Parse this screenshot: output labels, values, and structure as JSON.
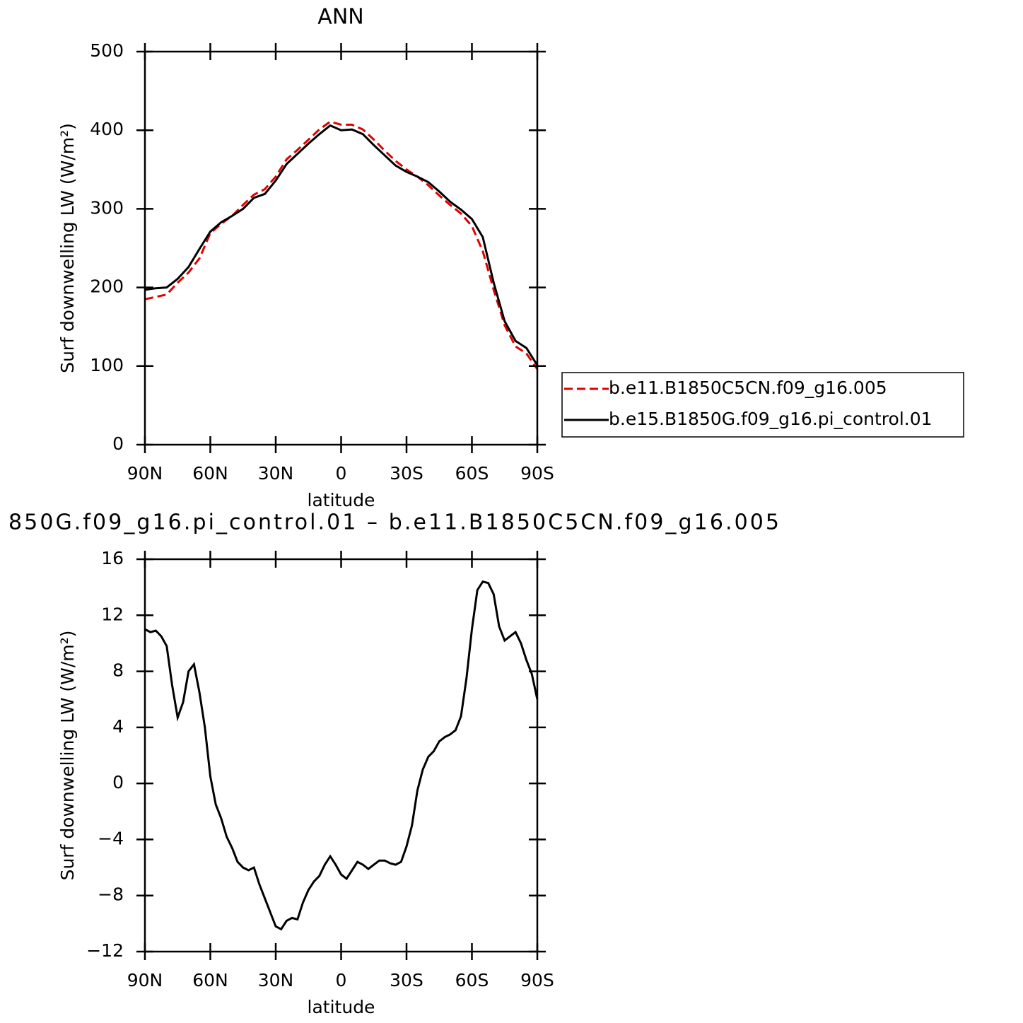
{
  "chart_data": [
    {
      "type": "line",
      "title": "ANN",
      "x_label": "latitude",
      "y_label": "Surf downwelling LW (W/m²)",
      "x": [
        90,
        85,
        80,
        75,
        70,
        65,
        60,
        55,
        50,
        45,
        40,
        35,
        30,
        25,
        20,
        15,
        10,
        5,
        0,
        -5,
        -10,
        -15,
        -20,
        -25,
        -30,
        -35,
        -40,
        -45,
        -50,
        -55,
        -60,
        -65,
        -70,
        -75,
        -80,
        -85,
        -90
      ],
      "series": [
        {
          "name": "b.e11.B1850C5CN.f09_g16.005",
          "color": "#e00000",
          "linestyle": "dashed",
          "values": [
            185,
            188,
            191,
            206,
            219,
            237,
            269,
            281,
            291,
            305,
            318,
            325,
            341,
            363,
            375,
            388,
            401,
            411,
            407,
            407,
            401,
            388,
            374,
            361,
            350,
            341,
            330,
            317,
            305,
            294,
            278,
            246,
            197,
            152,
            125,
            116,
            96
          ]
        },
        {
          "name": "b.e15.B1850G.f09_g16.pi_control.01",
          "color": "#000000",
          "linestyle": "solid",
          "values": [
            197,
            199,
            200,
            211,
            226,
            249,
            271,
            283,
            291,
            300,
            314,
            319,
            336,
            357,
            370,
            383,
            395,
            406,
            400,
            401,
            395,
            381,
            368,
            355,
            347,
            341,
            334,
            322,
            309,
            299,
            287,
            264,
            206,
            157,
            132,
            123,
            101
          ]
        }
      ],
      "xlim": [
        90,
        -90
      ],
      "xticks": [
        {
          "value": 90,
          "label": "90N"
        },
        {
          "value": 60,
          "label": "60N"
        },
        {
          "value": 30,
          "label": "30N"
        },
        0,
        {
          "value": -30,
          "label": "30S"
        },
        {
          "value": -60,
          "label": "60S"
        },
        {
          "value": -90,
          "label": "90S"
        }
      ],
      "ylim": [
        0,
        500
      ],
      "yticks": [
        0,
        100,
        200,
        300,
        400,
        500
      ],
      "legend": "right"
    },
    {
      "type": "line",
      "title": "850G.f09_g16.pi_control.01 – b.e11.B1850C5CN.f09_g16.005",
      "x_label": "latitude",
      "y_label": "Surf downwelling LW (W/m²)",
      "x": [
        90,
        87.5,
        85,
        82.5,
        80,
        77.5,
        75,
        72.5,
        70,
        67.5,
        65,
        62.5,
        60,
        57.5,
        55,
        52.5,
        50,
        47.5,
        45,
        42.5,
        40,
        37.5,
        35,
        32.5,
        30,
        27.5,
        25,
        22.5,
        20,
        17.5,
        15,
        12.5,
        10,
        7.5,
        5,
        2.5,
        0,
        -2.5,
        -5,
        -7.5,
        -10,
        -12.5,
        -15,
        -17.5,
        -20,
        -22.5,
        -25,
        -27.5,
        -30,
        -32.5,
        -35,
        -37.5,
        -40,
        -42.5,
        -45,
        -47.5,
        -50,
        -52.5,
        -55,
        -57.5,
        -60,
        -62.5,
        -65,
        -67.5,
        -70,
        -72.5,
        -75,
        -77.5,
        -80,
        -82.5,
        -85,
        -87.5,
        -90
      ],
      "values": [
        11.0,
        10.8,
        10.9,
        10.5,
        9.8,
        7.0,
        4.7,
        5.8,
        8.0,
        8.5,
        6.5,
        4.0,
        0.5,
        -1.5,
        -2.5,
        -3.8,
        -4.6,
        -5.6,
        -6.0,
        -6.2,
        -6.0,
        -7.2,
        -8.2,
        -9.2,
        -10.2,
        -10.4,
        -9.8,
        -9.6,
        -9.7,
        -8.5,
        -7.6,
        -7.0,
        -6.6,
        -5.8,
        -5.2,
        -5.8,
        -6.5,
        -6.8,
        -6.2,
        -5.6,
        -5.8,
        -6.1,
        -5.8,
        -5.5,
        -5.5,
        -5.7,
        -5.8,
        -5.6,
        -4.5,
        -3.0,
        -0.5,
        1.0,
        1.9,
        2.3,
        3.0,
        3.3,
        3.5,
        3.8,
        4.8,
        7.5,
        11.0,
        13.8,
        14.4,
        14.3,
        13.5,
        11.2,
        10.2,
        10.5,
        10.8,
        10.0,
        8.8,
        7.8,
        6.0
      ],
      "color": "#000000",
      "xlim": [
        90,
        -90
      ],
      "xticks": [
        {
          "value": 90,
          "label": "90N"
        },
        {
          "value": 60,
          "label": "60N"
        },
        {
          "value": 30,
          "label": "30N"
        },
        0,
        {
          "value": -30,
          "label": "30S"
        },
        {
          "value": -60,
          "label": "60S"
        },
        {
          "value": -90,
          "label": "90S"
        }
      ],
      "ylim": [
        -12,
        16
      ],
      "yticks": [
        {
          "value": -12,
          "label": "−12"
        },
        {
          "value": -8,
          "label": "−8"
        },
        {
          "value": -4,
          "label": "−4"
        },
        0,
        4,
        8,
        12,
        16
      ]
    }
  ]
}
